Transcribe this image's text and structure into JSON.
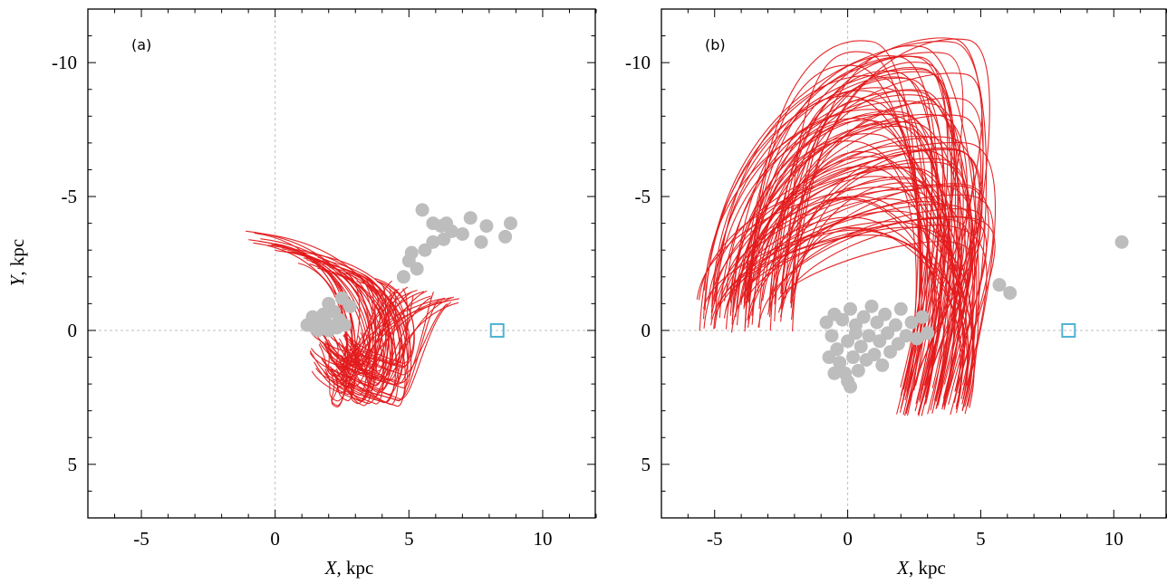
{
  "chart_data": [
    {
      "type": "scatter",
      "panel_label": "(a)",
      "xlabel": {
        "symbol": "X",
        "unit": ", kpc"
      },
      "ylabel": {
        "symbol": "Y",
        "unit": ",  kpc"
      },
      "xlim": [
        -7,
        12
      ],
      "ylim": [
        7,
        -12
      ],
      "x_ticks": [
        -5,
        0,
        5,
        10
      ],
      "y_ticks": [
        -10,
        -5,
        0,
        5
      ],
      "zero_lines": true,
      "colors": {
        "orbits": "#e31a1c",
        "clusters": "#bdbdbd",
        "sun": "#4eb3d3"
      },
      "sun": {
        "x": 8.3,
        "y": 0
      },
      "orbit_bundle": {
        "count": 70,
        "y_start_range": [
          -3.8,
          -1.0
        ],
        "x_start_range": [
          -1.0,
          7.0
        ],
        "x_turn_range": [
          2.4,
          5.0
        ],
        "y_end_range": [
          1.2,
          2.9
        ],
        "x_end_range": [
          1.3,
          3.2
        ]
      },
      "clusters": [
        [
          1.2,
          -0.2
        ],
        [
          1.4,
          -0.5
        ],
        [
          1.6,
          0.0
        ],
        [
          1.8,
          -0.6
        ],
        [
          1.9,
          -0.3
        ],
        [
          2.0,
          -1.0
        ],
        [
          2.1,
          -0.1
        ],
        [
          2.2,
          -0.7
        ],
        [
          2.4,
          -0.4
        ],
        [
          2.5,
          -1.2
        ],
        [
          2.6,
          -0.2
        ],
        [
          1.5,
          -0.1
        ],
        [
          2.8,
          -0.9
        ],
        [
          2.3,
          -0.1
        ],
        [
          1.7,
          -0.2
        ],
        [
          2.0,
          0.0
        ],
        [
          4.8,
          -2.0
        ],
        [
          5.0,
          -2.6
        ],
        [
          5.3,
          -2.3
        ],
        [
          5.6,
          -3.0
        ],
        [
          5.9,
          -3.3
        ],
        [
          6.3,
          -3.4
        ],
        [
          6.6,
          -3.7
        ],
        [
          6.2,
          -3.9
        ],
        [
          5.5,
          -4.5
        ],
        [
          5.9,
          -4.0
        ],
        [
          6.4,
          -4.0
        ],
        [
          7.0,
          -3.6
        ],
        [
          7.3,
          -4.2
        ],
        [
          7.7,
          -3.3
        ],
        [
          7.9,
          -3.9
        ],
        [
          8.6,
          -3.5
        ],
        [
          8.8,
          -4.0
        ],
        [
          5.1,
          -2.9
        ]
      ]
    },
    {
      "type": "scatter",
      "panel_label": "(b)",
      "xlabel": {
        "symbol": "X",
        "unit": ", kpc"
      },
      "ylabel": null,
      "xlim": [
        -7,
        12
      ],
      "ylim": [
        7,
        -12
      ],
      "x_ticks": [
        -5,
        0,
        5,
        10
      ],
      "y_ticks": [
        -10,
        -5,
        0,
        5
      ],
      "zero_lines": true,
      "colors": {
        "orbits": "#e31a1c",
        "clusters": "#bdbdbd",
        "sun": "#4eb3d3"
      },
      "sun": {
        "x": 8.3,
        "y": 0
      },
      "orbit_bundle": {
        "count": 90,
        "y_start_range": [
          0.1,
          -1.5
        ],
        "x_start_range": [
          -5.7,
          -2.0
        ],
        "y_peak_range": [
          -3.5,
          -10.8
        ],
        "x_end_range": [
          2.5,
          5.3
        ],
        "y_end_range": [
          2.0,
          3.2
        ]
      },
      "clusters": [
        [
          -0.8,
          -0.3
        ],
        [
          -0.6,
          0.2
        ],
        [
          -0.5,
          -0.6
        ],
        [
          -0.4,
          0.7
        ],
        [
          -0.3,
          1.2
        ],
        [
          -0.2,
          -0.4
        ],
        [
          -0.1,
          1.6
        ],
        [
          0.0,
          0.4
        ],
        [
          0.1,
          -0.8
        ],
        [
          0.1,
          2.1
        ],
        [
          0.2,
          1.0
        ],
        [
          0.3,
          -0.2
        ],
        [
          0.4,
          1.5
        ],
        [
          0.5,
          0.6
        ],
        [
          0.6,
          -0.5
        ],
        [
          0.7,
          1.1
        ],
        [
          0.8,
          0.2
        ],
        [
          0.9,
          -0.9
        ],
        [
          1.0,
          0.9
        ],
        [
          1.1,
          -0.3
        ],
        [
          1.2,
          0.4
        ],
        [
          1.3,
          1.3
        ],
        [
          1.4,
          -0.6
        ],
        [
          1.5,
          0.1
        ],
        [
          1.6,
          0.8
        ],
        [
          1.8,
          -0.2
        ],
        [
          1.9,
          0.5
        ],
        [
          2.0,
          -0.8
        ],
        [
          2.2,
          0.2
        ],
        [
          2.4,
          -0.3
        ],
        [
          2.6,
          0.3
        ],
        [
          2.8,
          -0.5
        ],
        [
          3.0,
          0.1
        ],
        [
          -0.7,
          1.0
        ],
        [
          -0.5,
          1.6
        ],
        [
          0.0,
          1.9
        ],
        [
          0.3,
          0.1
        ],
        [
          5.7,
          -1.7
        ],
        [
          6.1,
          -1.4
        ],
        [
          10.3,
          -3.3
        ]
      ]
    }
  ]
}
